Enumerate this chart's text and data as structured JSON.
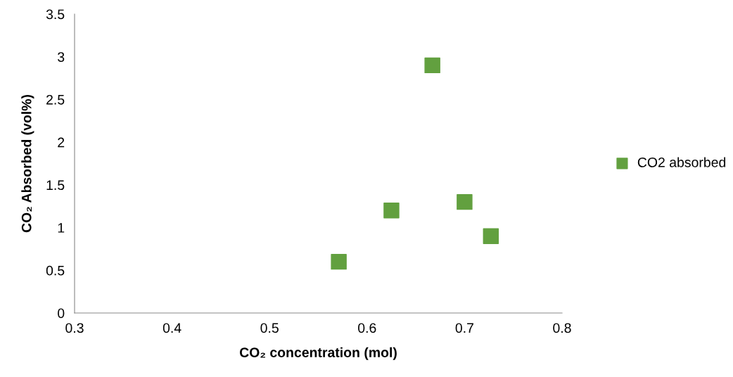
{
  "chart_data": {
    "type": "scatter",
    "xlabel": "CO₂ concentration (mol)",
    "ylabel": "CO₂ Absorbed (vol%)",
    "series": [
      {
        "name": "CO2 absorbed",
        "color": "#62a03f",
        "x": [
          0.571,
          0.625,
          0.667,
          0.7,
          0.727
        ],
        "values": [
          0.6,
          1.2,
          2.9,
          1.3,
          0.9
        ]
      }
    ],
    "xlim": [
      0.3,
      0.8
    ],
    "xticks": [
      0.3,
      0.4,
      0.5,
      0.6,
      0.7,
      0.8
    ],
    "ylim": [
      0,
      3.5
    ],
    "yticks": [
      0,
      0.5,
      1,
      1.5,
      2,
      2.5,
      3,
      3.5
    ],
    "marker": "square",
    "grid": false,
    "legend": "right"
  }
}
